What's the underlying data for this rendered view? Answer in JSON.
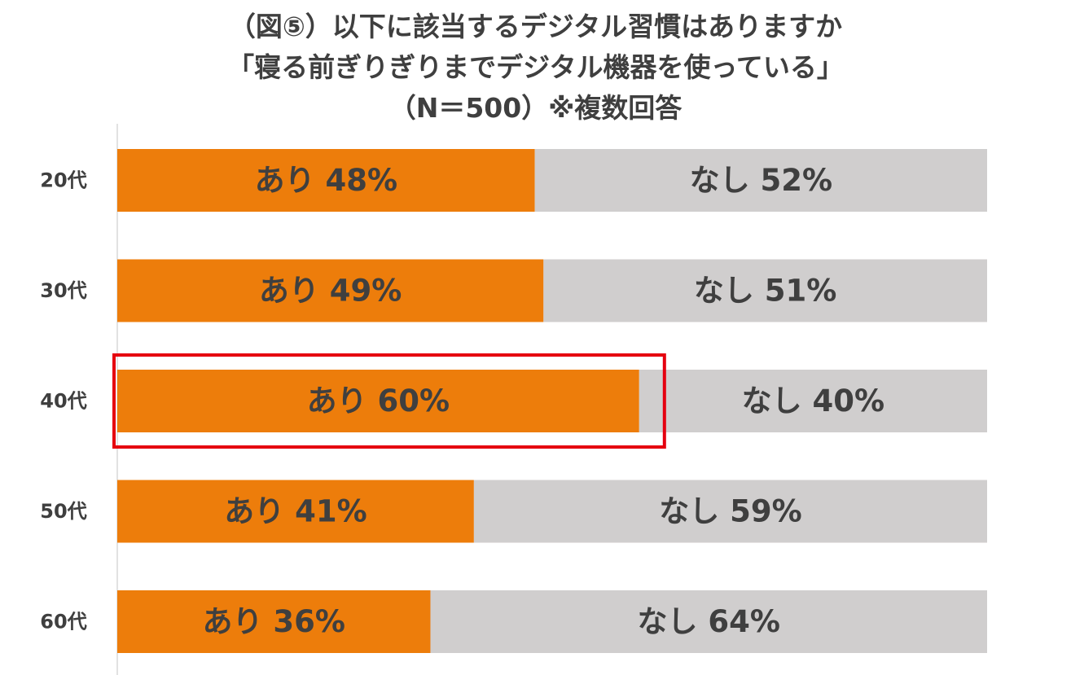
{
  "chart_data": {
    "type": "bar",
    "orientation": "horizontal",
    "stacked": true,
    "title_lines": [
      "（図⑤）以下に該当するデジタル習慣はありますか",
      "「寝る前ぎりぎりまでデジタル機器を使っている」",
      "（N＝500）※複数回答"
    ],
    "categories": [
      "20代",
      "30代",
      "40代",
      "50代",
      "60代"
    ],
    "series": [
      {
        "name": "あり",
        "values": [
          48,
          49,
          60,
          41,
          36
        ],
        "labels": [
          "あり 48%",
          "あり 49%",
          "あり 60%",
          "あり 41%",
          "あり 36%"
        ],
        "color": "#ed7d0b"
      },
      {
        "name": "なし",
        "values": [
          52,
          51,
          40,
          59,
          64
        ],
        "labels": [
          "なし 52%",
          "なし 51%",
          "なし 40%",
          "なし 59%",
          "なし 64%"
        ],
        "color": "#d0cece"
      }
    ],
    "xlim": [
      0,
      100
    ],
    "highlight_category": "40代",
    "highlight_color": "#e5000f",
    "label_color": "#3f3f3f",
    "axis_color": "#d9d9d9",
    "grid": false,
    "legend": "none"
  }
}
